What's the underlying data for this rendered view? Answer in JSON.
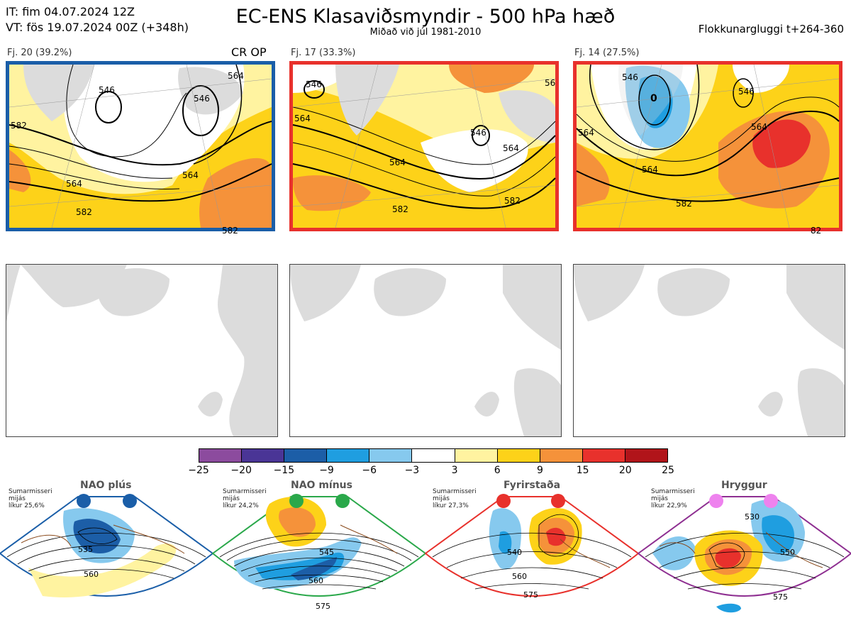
{
  "header": {
    "it_line": "IT: fim 04.07.2024 12Z",
    "vt_line": "VT: fös 19.07.2024 00Z  (+348h)",
    "title": "EC-ENS Klasaviðsmyndir - 500 hPa hæð",
    "subtitle": "Miðað við júl 1981-2010",
    "window": "Flokkunargluggi t+264-360"
  },
  "clusters": [
    {
      "label": "Fj. 20 (39.2%)",
      "tag": "CR OP",
      "border": "#1a5ea8",
      "contours": [
        {
          "t": "546"
        },
        {
          "t": "546"
        },
        {
          "t": "564"
        },
        {
          "t": "564"
        },
        {
          "t": "582"
        },
        {
          "t": "582"
        },
        {
          "t": "582"
        },
        {
          "t": "564"
        }
      ]
    },
    {
      "label": "Fj. 17 (33.3%)",
      "tag": "",
      "border": "#e8312c",
      "contours": [
        {
          "t": "546"
        },
        {
          "t": "546"
        },
        {
          "t": "564"
        },
        {
          "t": "564"
        },
        {
          "t": "582"
        },
        {
          "t": "582"
        },
        {
          "t": "564"
        },
        {
          "t": "56"
        }
      ]
    },
    {
      "label": "Fj. 14 (27.5%)",
      "tag": "",
      "border": "#e8312c",
      "contours": [
        {
          "t": "546"
        },
        {
          "t": "546"
        },
        {
          "t": "564"
        },
        {
          "t": "564"
        },
        {
          "t": "582"
        },
        {
          "t": "82"
        },
        {
          "t": "564"
        },
        {
          "t": "0"
        }
      ]
    }
  ],
  "colorbar": {
    "colors": [
      "#8c4b9e",
      "#4a3596",
      "#1c5ea7",
      "#1f9ee0",
      "#86c9ee",
      "#ffffff",
      "#fff3a0",
      "#fdd219",
      "#f5923a",
      "#e8312c",
      "#b1141a"
    ],
    "ticks": [
      "−25",
      "−20",
      "−15",
      "−9",
      "−6",
      "−3",
      "3",
      "6",
      "9",
      "15",
      "20",
      "25"
    ]
  },
  "regimes": [
    {
      "name": "NAO plús",
      "line1": "Sumarmisseri",
      "line2": "mijás",
      "line3": "líkur 25,6%",
      "color": "#1a5ea8",
      "dot": "#1a5ea8",
      "c1": "535",
      "c2": "560"
    },
    {
      "name": "NAO mínus",
      "line1": "Sumarmisseri",
      "line2": "mijás",
      "line3": "líkur 24,2%",
      "color": "#2aa84a",
      "dot": "#2aa84a",
      "c1": "545",
      "c2": "560",
      "c3": "575"
    },
    {
      "name": "Fyrirstaða",
      "line1": "Sumarmisseri",
      "line2": "mijás",
      "line3": "líkur 27,3%",
      "color": "#e8312c",
      "dot": "#e8312c",
      "c1": "540",
      "c2": "560",
      "c3": "575"
    },
    {
      "name": "Hryggur",
      "line1": "Sumarmisseri",
      "line2": "mijás",
      "line3": "líkur 22,9%",
      "color": "#8e2f91",
      "dot": "#ee82ee",
      "c1": "530",
      "c2": "550",
      "c3": "575"
    }
  ]
}
